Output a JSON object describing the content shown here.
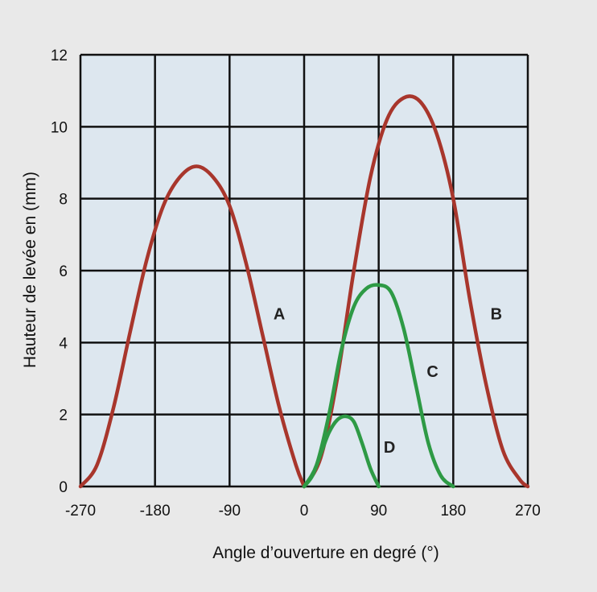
{
  "chart_data": {
    "type": "line",
    "title": "",
    "xlabel": "Angle d’ouverture en degré (°)",
    "ylabel": "Hauteur de levée en (mm)",
    "xlim": [
      -270,
      270
    ],
    "ylim": [
      0,
      12
    ],
    "x_ticks": [
      -270,
      -180,
      -90,
      0,
      90,
      180,
      270
    ],
    "x_tick_labels": [
      "-270",
      "-180",
      "-90",
      "0",
      "90",
      "180",
      "270"
    ],
    "y_ticks": [
      0,
      2,
      4,
      6,
      8,
      10,
      12
    ],
    "y_tick_labels": [
      "0",
      "2",
      "4",
      "6",
      "8",
      "10",
      "12"
    ],
    "grid": true,
    "legend": "none",
    "series": [
      {
        "name": "A",
        "color": "#a8362c",
        "x": [
          -270,
          -250,
          -230,
          -210,
          -190,
          -170,
          -150,
          -130,
          -110,
          -90,
          -70,
          -50,
          -30,
          -10,
          0
        ],
        "y": [
          0,
          0.6,
          2.2,
          4.3,
          6.3,
          7.8,
          8.6,
          8.9,
          8.6,
          7.8,
          6.2,
          4.2,
          2.2,
          0.6,
          0
        ],
        "label_x": -30,
        "label_y": 4.8
      },
      {
        "name": "B",
        "color": "#a8362c",
        "x": [
          0,
          20,
          40,
          60,
          80,
          100,
          120,
          140,
          160,
          180,
          200,
          220,
          240,
          260,
          270
        ],
        "y": [
          0,
          0.8,
          3.0,
          6.0,
          8.6,
          10.2,
          10.8,
          10.7,
          9.8,
          8.0,
          5.2,
          2.8,
          1.0,
          0.2,
          0
        ],
        "label_x": 232,
        "label_y": 4.8
      },
      {
        "name": "C",
        "color": "#2e9a45",
        "x": [
          0,
          15,
          30,
          45,
          60,
          75,
          90,
          105,
          120,
          135,
          150,
          165,
          180
        ],
        "y": [
          0,
          0.6,
          2.0,
          3.8,
          5.0,
          5.5,
          5.6,
          5.4,
          4.4,
          2.8,
          1.2,
          0.3,
          0
        ],
        "label_x": 155,
        "label_y": 3.2
      },
      {
        "name": "D",
        "color": "#2e9a45",
        "x": [
          0,
          10,
          20,
          30,
          40,
          50,
          60,
          70,
          80,
          90
        ],
        "y": [
          0,
          0.3,
          0.9,
          1.5,
          1.85,
          1.95,
          1.8,
          1.2,
          0.5,
          0
        ],
        "label_x": 103,
        "label_y": 1.1
      }
    ],
    "colors": {
      "plot_bg": "#dde7ef",
      "grid": "#111111",
      "page_bg": "#e9e9e9"
    }
  }
}
